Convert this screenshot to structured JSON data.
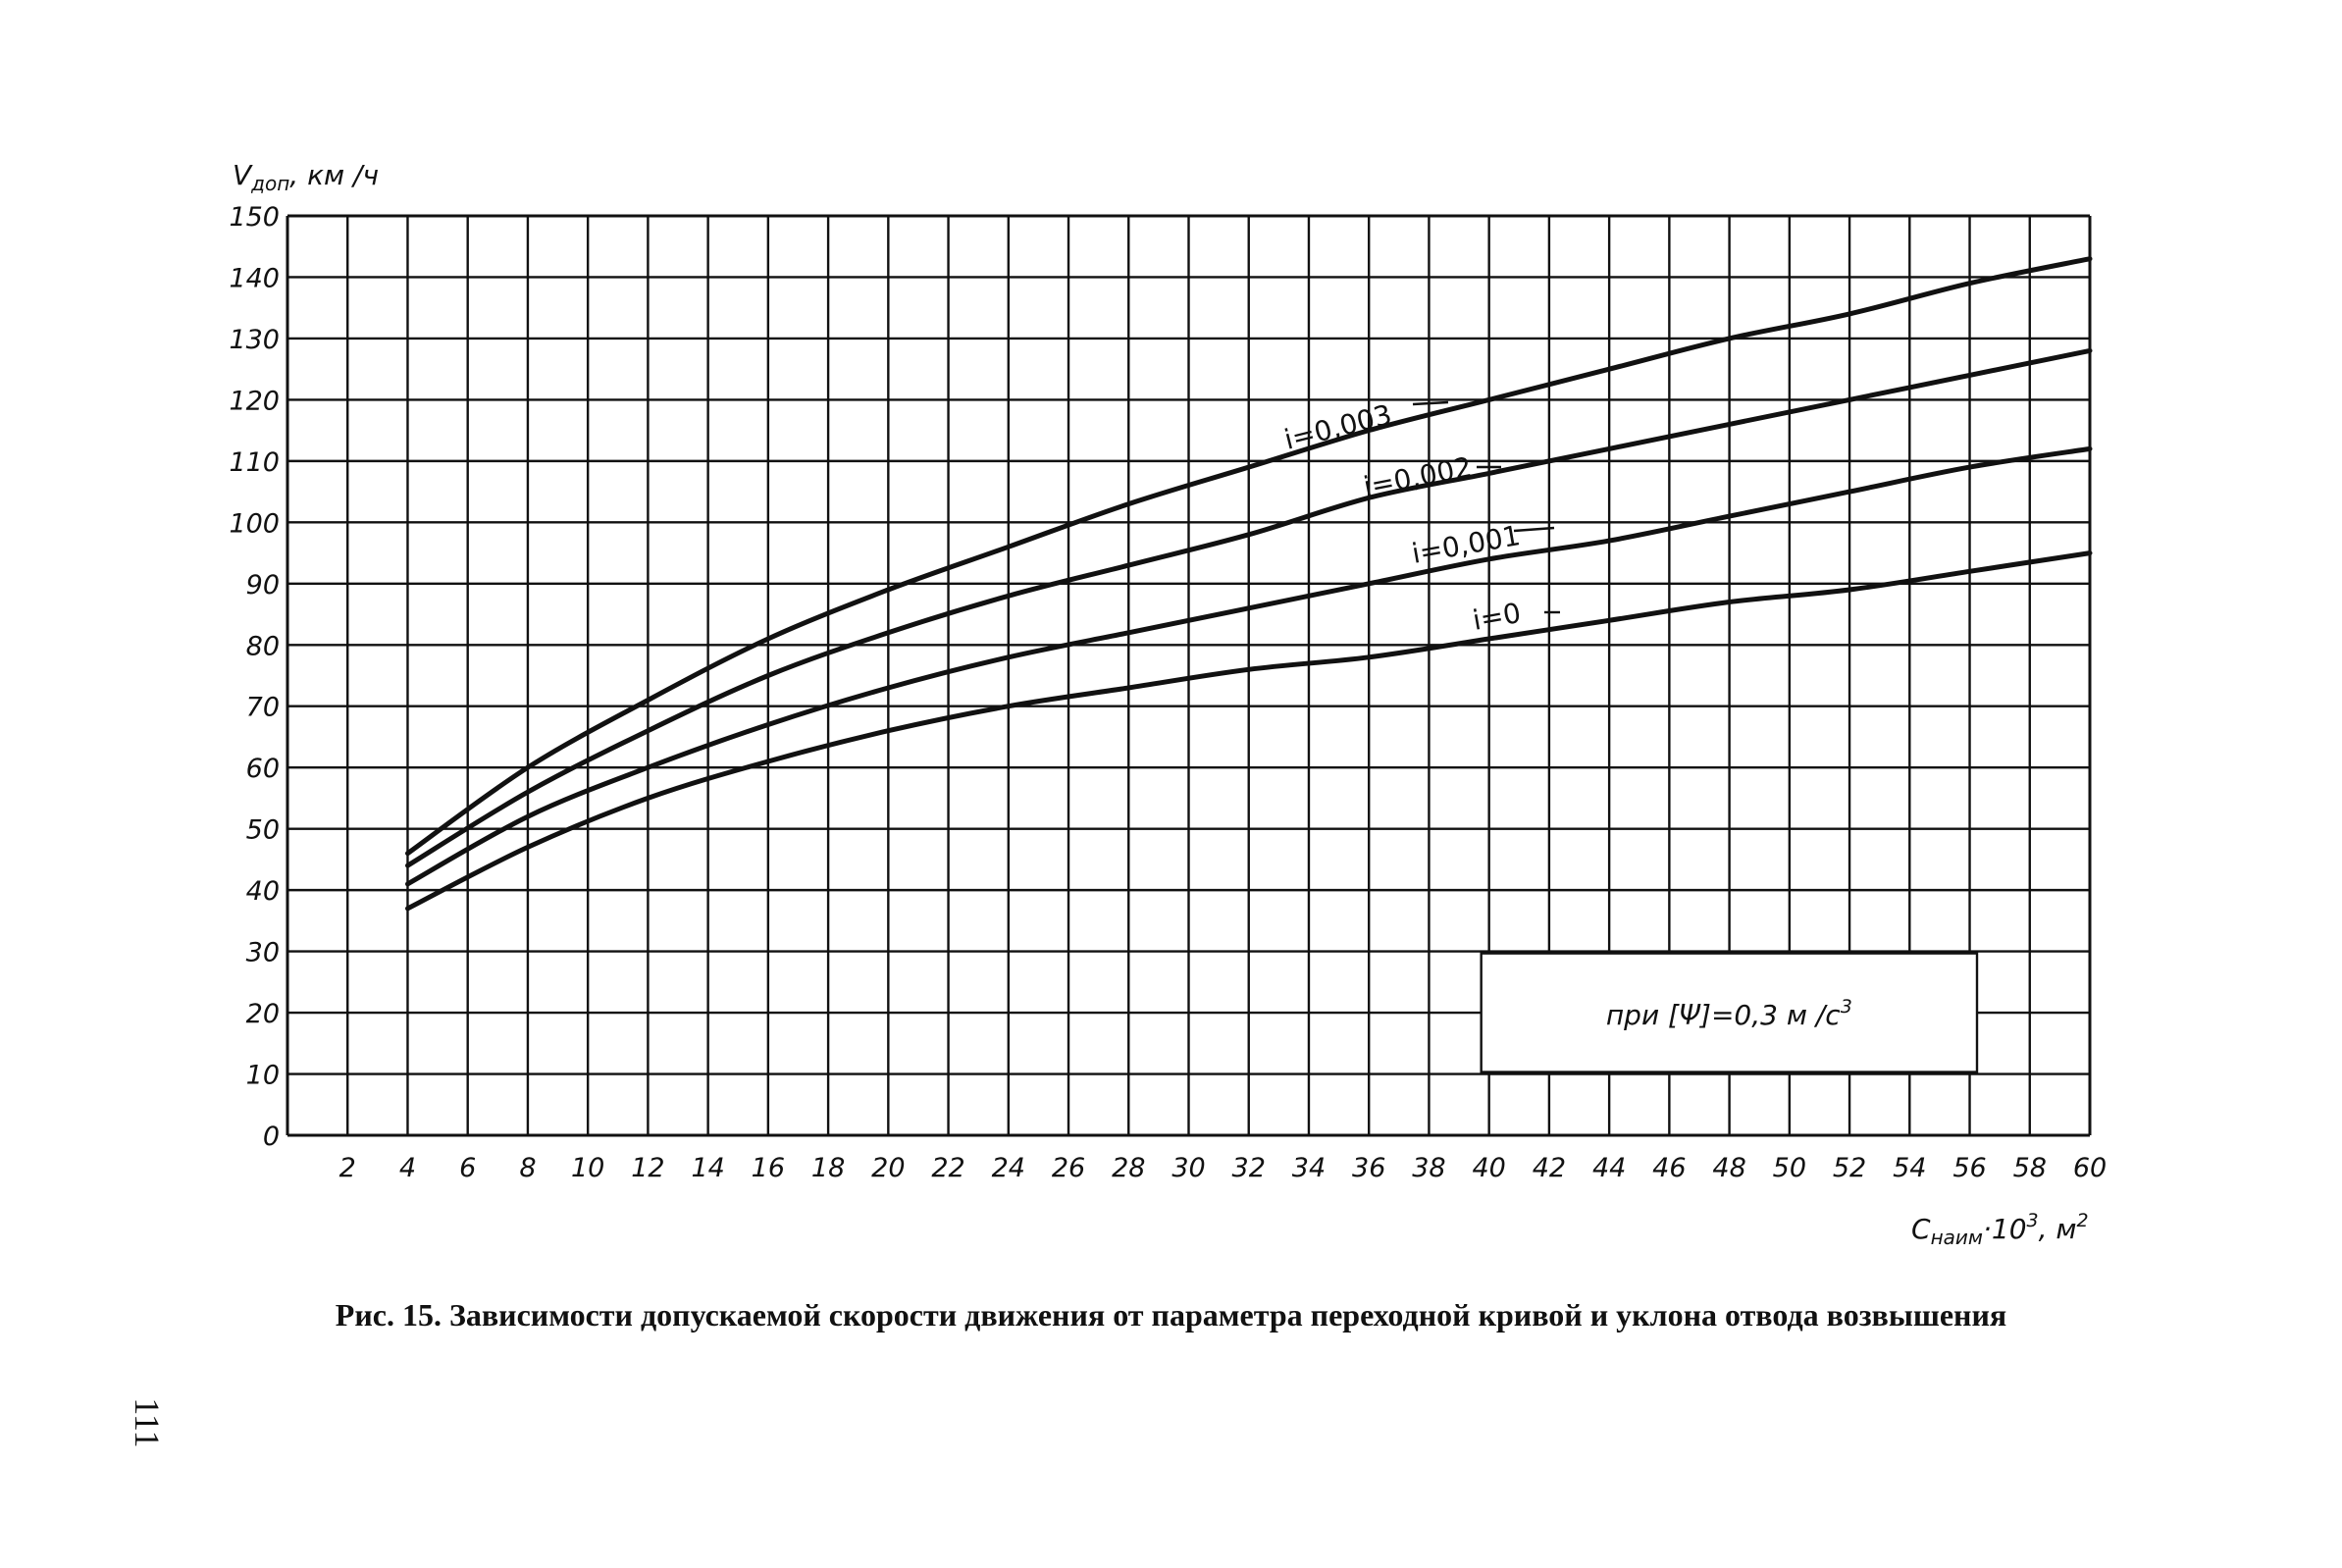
{
  "chart_data": {
    "type": "line",
    "ylabel": "Vдоп, км/ч",
    "ylabel_main": "V",
    "ylabel_sub": "доп",
    "ylabel_unit": ", км /ч",
    "xlabel_main": "C",
    "xlabel_sub": "наим",
    "xlabel_rest": "·10",
    "xlabel_exp": "3",
    "xlabel_unit": ", м",
    "xlabel_unit_exp": "2",
    "xlim": [
      0,
      60
    ],
    "ylim": [
      0,
      150
    ],
    "grid": true,
    "x_ticks": [
      "2",
      "4",
      "6",
      "8",
      "10",
      "12",
      "14",
      "16",
      "18",
      "20",
      "22",
      "24",
      "26",
      "28",
      "30",
      "32",
      "34",
      "36",
      "38",
      "40",
      "42",
      "44",
      "46",
      "48",
      "50",
      "52",
      "54",
      "56",
      "58",
      "60"
    ],
    "y_ticks": [
      "0",
      "10",
      "20",
      "30",
      "40",
      "50",
      "60",
      "70",
      "80",
      "90",
      "100",
      "110",
      "120",
      "130",
      "140",
      "150"
    ],
    "series": [
      {
        "name": "i=0,003",
        "x": [
          4,
          8,
          12,
          16,
          20,
          24,
          28,
          32,
          36,
          40,
          44,
          48,
          52,
          56,
          60
        ],
        "y": [
          46,
          60,
          71,
          81,
          89,
          96,
          103,
          109,
          115,
          120,
          125,
          130,
          134,
          139,
          143
        ]
      },
      {
        "name": "i=0,002",
        "x": [
          4,
          8,
          12,
          16,
          20,
          24,
          28,
          32,
          36,
          40,
          44,
          48,
          52,
          56,
          60
        ],
        "y": [
          44,
          56,
          66,
          75,
          82,
          88,
          93,
          98,
          104,
          108,
          112,
          116,
          120,
          124,
          128
        ]
      },
      {
        "name": "i=0,001",
        "x": [
          4,
          8,
          12,
          16,
          20,
          24,
          28,
          32,
          36,
          40,
          44,
          48,
          52,
          56,
          60
        ],
        "y": [
          41,
          52,
          60,
          67,
          73,
          78,
          82,
          86,
          90,
          94,
          97,
          101,
          105,
          109,
          112
        ]
      },
      {
        "name": "i=0",
        "x": [
          4,
          8,
          12,
          16,
          20,
          24,
          28,
          32,
          36,
          40,
          44,
          48,
          52,
          56,
          60
        ],
        "y": [
          37,
          47,
          55,
          61,
          66,
          70,
          73,
          76,
          78,
          81,
          84,
          87,
          89,
          92,
          95
        ]
      }
    ],
    "annotation": "при [Ψ]=0,3 м /с",
    "annotation_exp": "3"
  },
  "caption": "Рис. 15. Зависимости допускаемой скорости движения от параметра переходной кривой и уклона отвода возвышения",
  "page_number": "111"
}
